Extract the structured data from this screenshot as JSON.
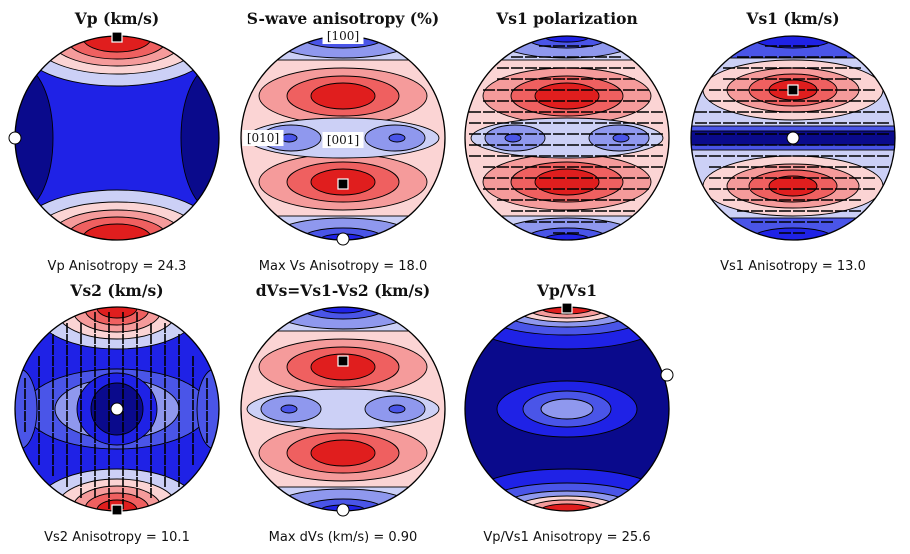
{
  "colors": {
    "deep_blue": "#0a0a8c",
    "blue": "#1f22e6",
    "mid_blue": "#4a55e8",
    "light_blue": "#8f98ee",
    "pale_blue": "#ccd0f6",
    "pale_red": "#fbd4d4",
    "light_red": "#f59b9b",
    "mid_red": "#ef6060",
    "red": "#e01e1e",
    "marker_max": "#000000",
    "marker_min": "#ffffff"
  },
  "chart_data": [
    {
      "type": "pole-figure",
      "id": "vp",
      "title": "Vp (km/s)",
      "stat": "Vp Anisotropy = 24.3",
      "pattern": "vp",
      "max_marker": "top",
      "min_marker": "left-edge"
    },
    {
      "type": "pole-figure",
      "id": "swave",
      "title": "S-wave anisotropy (%)",
      "stat": "Max Vs Anisotropy = 18.0",
      "pattern": "banded",
      "max_marker": "lower-center",
      "min_marker": "bottom",
      "axis_labels": {
        "top": "[100]",
        "left": "[010]",
        "center": "[001]"
      }
    },
    {
      "type": "pole-figure",
      "id": "vs1pol",
      "title": "Vs1 polarization",
      "stat": "",
      "pattern": "banded",
      "polarization_ticks": "horizontal"
    },
    {
      "type": "pole-figure",
      "id": "vs1",
      "title": "Vs1 (km/s)",
      "stat": "Vs1 Anisotropy = 13.0",
      "pattern": "vs1",
      "max_marker": "upper-center",
      "min_marker": "center",
      "polarization_ticks": "horizontal"
    },
    {
      "type": "pole-figure",
      "id": "vs2",
      "title": "Vs2 (km/s)",
      "stat": "Vs2 Anisotropy = 10.1",
      "pattern": "vs2",
      "max_marker": "bottom",
      "min_marker": "center",
      "polarization_ticks": "vertical"
    },
    {
      "type": "pole-figure",
      "id": "dvs",
      "title": "dVs=Vs1-Vs2 (km/s)",
      "stat": "Max dVs (km/s) = 0.90",
      "pattern": "banded",
      "max_marker": "upper-center",
      "min_marker": "bottom"
    },
    {
      "type": "pole-figure",
      "id": "vpvs1",
      "title": "Vp/Vs1",
      "stat": "Vp/Vs1 Anisotropy = 25.6",
      "pattern": "vpvs1",
      "max_marker": "top",
      "min_marker": "right-edge"
    }
  ]
}
